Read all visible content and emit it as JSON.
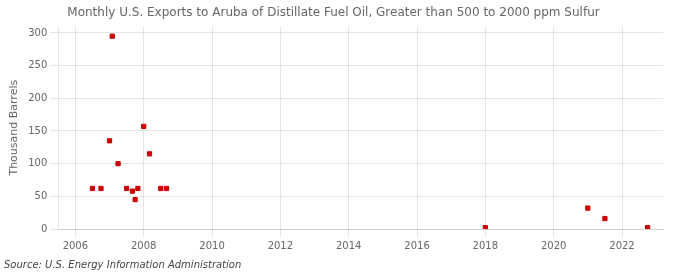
{
  "chart_data": {
    "type": "scatter",
    "title": "Monthly U.S. Exports to Aruba of Distillate Fuel Oil, Greater than 500 to 2000 ppm Sulfur",
    "ylabel": "Thousand Barrels",
    "source": "Source: U.S. Energy Information Administration",
    "color": "#cc0000",
    "marker": "square",
    "grid": true,
    "xlim": [
      2005.5,
      2023.2
    ],
    "ylim": [
      0,
      310
    ],
    "xticks": [
      2006,
      2008,
      2010,
      2012,
      2014,
      2016,
      2018,
      2020,
      2022
    ],
    "yticks": [
      0,
      50,
      100,
      150,
      200,
      250,
      300
    ],
    "x": [
      2006.5,
      2006.75,
      2007.0,
      2007.08,
      2007.25,
      2007.5,
      2007.67,
      2007.75,
      2007.83,
      2008.0,
      2008.17,
      2008.5,
      2008.67,
      2018.0,
      2021.0,
      2021.5,
      2022.75
    ],
    "values": [
      62,
      62,
      135,
      295,
      100,
      62,
      58,
      45,
      62,
      157,
      115,
      62,
      62,
      2,
      32,
      16,
      2
    ]
  }
}
